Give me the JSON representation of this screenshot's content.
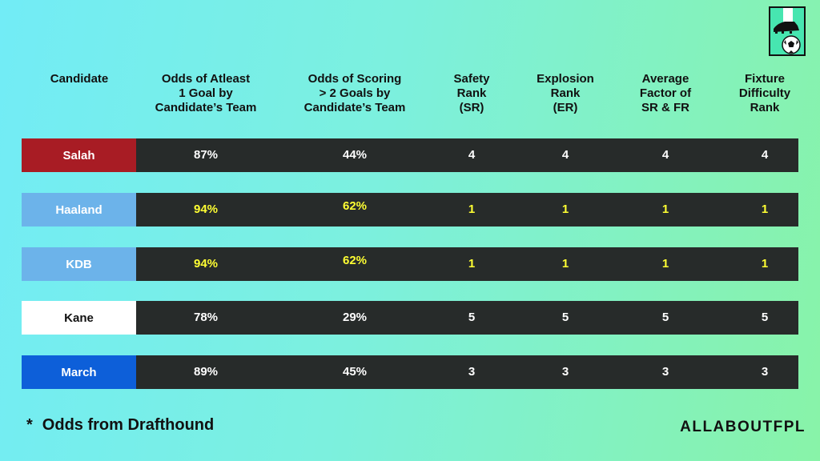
{
  "chart_data": {
    "type": "table",
    "columns": [
      "Candidate",
      "Odds of Atleast\n1 Goal by\nCandidate’s Team",
      "Odds of Scoring\n> 2 Goals by\nCandidate’s Team",
      "Safety\nRank\n(SR)",
      "Explosion\nRank\n(ER)",
      "Average\nFactor of\nSR & FR",
      "Fixture\nDifficulty\nRank"
    ],
    "rows": [
      {
        "candidate": "Salah",
        "color": "#a81c24",
        "text_color": "#ffffff",
        "highlight": false,
        "values": [
          "87%",
          "44%",
          "4",
          "4",
          "4",
          "4"
        ]
      },
      {
        "candidate": "Haaland",
        "color": "#6cb3ea",
        "text_color": "#ffffff",
        "highlight": true,
        "values": [
          "94%",
          "62%",
          "1",
          "1",
          "1",
          "1"
        ]
      },
      {
        "candidate": "KDB",
        "color": "#6cb3ea",
        "text_color": "#ffffff",
        "highlight": true,
        "values": [
          "94%",
          "62%",
          "1",
          "1",
          "1",
          "1"
        ]
      },
      {
        "candidate": "Kane",
        "color": "#ffffff",
        "text_color": "#111111",
        "highlight": false,
        "values": [
          "78%",
          "29%",
          "5",
          "5",
          "5",
          "5"
        ]
      },
      {
        "candidate": "March",
        "color": "#0d5fd9",
        "text_color": "#ffffff",
        "highlight": false,
        "values": [
          "89%",
          "45%",
          "3",
          "3",
          "3",
          "3"
        ]
      }
    ],
    "highlight_color": "#ffff33",
    "value_color": "#ffffff",
    "row_background": "#272b2a"
  },
  "footnote": {
    "star": "*",
    "text": "Odds from Drafthound"
  },
  "brand": "ALLABOUTFPL",
  "logo": {
    "icon": "football-boot-and-ball-icon"
  }
}
